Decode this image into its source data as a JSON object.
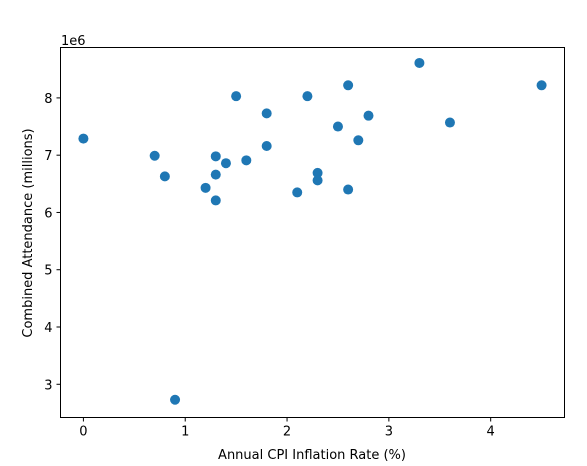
{
  "chart_data": {
    "type": "scatter",
    "xlabel": "Annual CPI Inflation Rate (%)",
    "ylabel": "Combined Attendance (millions)",
    "y_offset_label": "1e6",
    "xlim": [
      -0.225,
      4.725
    ],
    "ylim": [
      2420000,
      8880000
    ],
    "x_ticks": [
      0,
      1,
      2,
      3,
      4
    ],
    "y_ticks": [
      3,
      4,
      5,
      6,
      7,
      8
    ],
    "x_tick_labels": [
      "0",
      "1",
      "2",
      "3",
      "4"
    ],
    "y_tick_labels": [
      "3",
      "4",
      "5",
      "6",
      "7",
      "8"
    ],
    "y_tick_scale": 1000000,
    "grid": false,
    "marker_color": "#1f77b4",
    "series": [
      {
        "x": [
          0.0,
          0.7,
          0.8,
          0.9,
          1.2,
          1.3,
          1.3,
          1.3,
          1.4,
          1.5,
          1.6,
          1.8,
          1.8,
          2.1,
          2.2,
          2.3,
          2.3,
          2.5,
          2.6,
          2.6,
          2.7,
          2.8,
          3.3,
          3.6,
          4.5
        ],
        "y": [
          7290000,
          6990000,
          6630000,
          2730000,
          6430000,
          6980000,
          6660000,
          6210000,
          6860000,
          8030000,
          6910000,
          7730000,
          7160000,
          6350000,
          8030000,
          6690000,
          6560000,
          7500000,
          8220000,
          6400000,
          7260000,
          7690000,
          8610000,
          7570000,
          8220000
        ]
      }
    ]
  }
}
